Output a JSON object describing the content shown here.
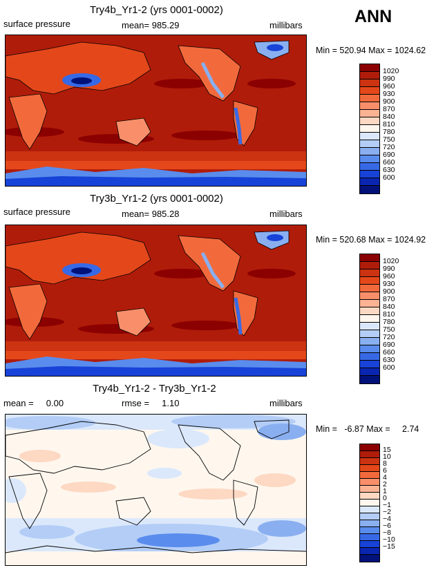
{
  "season": "ANN",
  "panels": [
    {
      "title": "Try4b_Yr1-2 (yrs 0001-0002)",
      "left": "surface pressure",
      "center": "mean= 985.29",
      "units": "millibars",
      "minmax": "Min = 520.94 Max = 1024.62",
      "levels": [
        "1020",
        "990",
        "960",
        "930",
        "900",
        "870",
        "840",
        "810",
        "780",
        "750",
        "720",
        "690",
        "660",
        "630",
        "600"
      ],
      "colors": [
        "#8b0000",
        "#b01c0a",
        "#cc3311",
        "#e4481a",
        "#f26a3c",
        "#f88f6a",
        "#fbb394",
        "#fdd8c2",
        "#fff7ee",
        "#dbe8fb",
        "#b3cdf6",
        "#8aaff0",
        "#5a8ced",
        "#3769e6",
        "#1843d8",
        "#0a25b0",
        "#001279"
      ]
    },
    {
      "title": "Try3b_Yr1-2 (yrs 0001-0002)",
      "left": "surface pressure",
      "center": "mean= 985.28",
      "units": "millibars",
      "minmax": "Min = 520.68 Max = 1024.92",
      "levels": [
        "1020",
        "990",
        "960",
        "930",
        "900",
        "870",
        "840",
        "810",
        "780",
        "750",
        "720",
        "690",
        "660",
        "630",
        "600"
      ],
      "colors": [
        "#8b0000",
        "#b01c0a",
        "#cc3311",
        "#e4481a",
        "#f26a3c",
        "#f88f6a",
        "#fbb394",
        "#fdd8c2",
        "#fff7ee",
        "#dbe8fb",
        "#b3cdf6",
        "#8aaff0",
        "#5a8ced",
        "#3769e6",
        "#1843d8",
        "#0a25b0",
        "#001279"
      ]
    },
    {
      "title": "Try4b_Yr1-2 - Try3b_Yr1-2",
      "left": "mean =     0.00",
      "center": "rmse =     1.10",
      "units": "millibars",
      "minmax": "Min =   -6.87 Max =     2.74",
      "levels": [
        "15",
        "10",
        "8",
        "6",
        "4",
        "2",
        "1",
        "0",
        "−1",
        "−2",
        "−4",
        "−6",
        "−8",
        "−10",
        "−15"
      ],
      "colors": [
        "#8b0000",
        "#b01c0a",
        "#cc3311",
        "#e4481a",
        "#f26a3c",
        "#f88f6a",
        "#fbb394",
        "#fdd8c2",
        "#fff7ee",
        "#dbe8fb",
        "#b3cdf6",
        "#8aaff0",
        "#5a8ced",
        "#3769e6",
        "#1843d8",
        "#0a25b0",
        "#001279"
      ]
    }
  ]
}
